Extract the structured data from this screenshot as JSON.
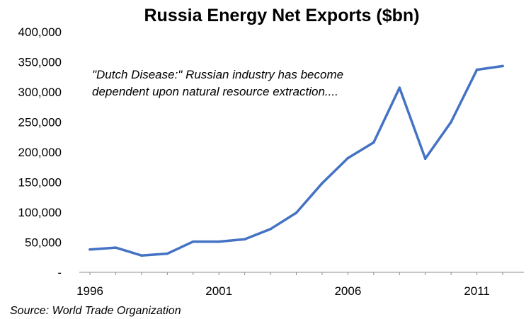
{
  "chart_data": {
    "type": "line",
    "title": "Russia Energy Net Exports ($bn)",
    "xlabel": "",
    "ylabel": "",
    "x": [
      1996,
      1997,
      1998,
      1999,
      2000,
      2001,
      2002,
      2003,
      2004,
      2005,
      2006,
      2007,
      2008,
      2009,
      2010,
      2011,
      2012
    ],
    "series": [
      {
        "name": "",
        "color": "#4472c4",
        "values": [
          38000,
          41000,
          28000,
          31000,
          51000,
          51000,
          55000,
          72000,
          99000,
          148000,
          190000,
          216000,
          307000,
          189000,
          250000,
          337000,
          343000
        ]
      }
    ],
    "ylim": [
      0,
      400000
    ],
    "xlim": [
      1996,
      2012
    ],
    "yticks": [
      0,
      50000,
      100000,
      150000,
      200000,
      250000,
      300000,
      350000,
      400000
    ],
    "ytick_labels": [
      "-",
      "50,000",
      "100,000",
      "150,000",
      "200,000",
      "250,000",
      "300,000",
      "350,000",
      "400,000"
    ],
    "xticks": [
      1996,
      2001,
      2006,
      2011
    ],
    "xtick_labels": [
      "1996",
      "2001",
      "2006",
      "2011"
    ],
    "annotation": [
      "\"Dutch Disease:\"  Russian industry has become",
      "dependent upon natural resource extraction...."
    ],
    "source": "Source: World Trade Organization",
    "grid": false,
    "legend": "none"
  }
}
